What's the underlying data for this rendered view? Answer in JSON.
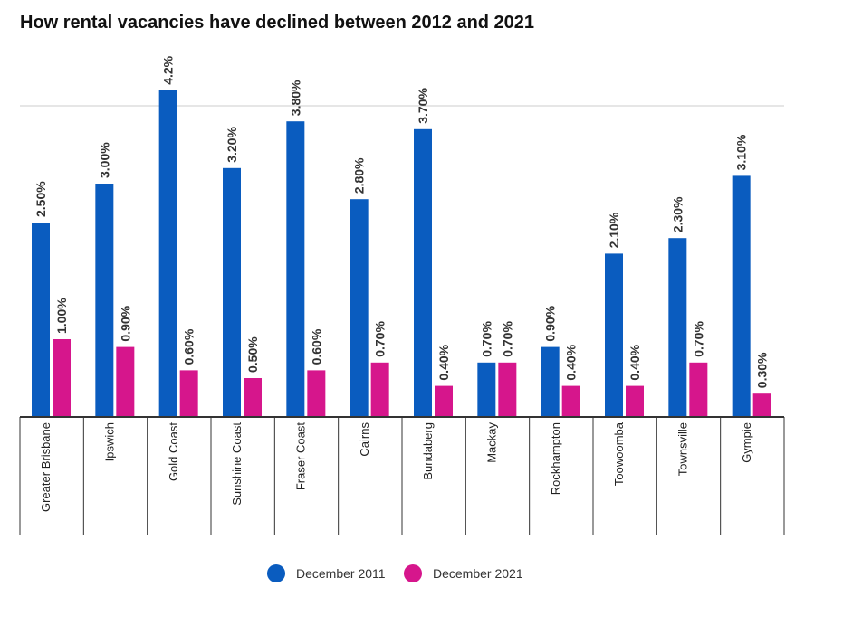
{
  "chart_data": {
    "type": "bar",
    "title": "How rental vacancies have declined between 2012 and 2021",
    "categories": [
      "Greater Brisbane",
      "Ipswich",
      "Gold Coast",
      "Sunshine Coast",
      "Fraser Coast",
      "Cairns",
      "Bundaberg",
      "Mackay",
      "Rockhampton",
      "Toowoomba",
      "Townsville",
      "Gympie"
    ],
    "series": [
      {
        "name": "December 2011",
        "color": "#0a5cbf",
        "values": [
          2.5,
          3.0,
          4.2,
          3.2,
          3.8,
          2.8,
          3.7,
          0.7,
          0.9,
          2.1,
          2.3,
          3.1
        ],
        "value_labels": [
          "2.50%",
          "3.00%",
          "4.2%",
          "3.20%",
          "3.80%",
          "2.80%",
          "3.70%",
          "0.70%",
          "0.90%",
          "2.10%",
          "2.30%",
          "3.10%"
        ]
      },
      {
        "name": "December 2021",
        "color": "#d6168c",
        "values": [
          1.0,
          0.9,
          0.6,
          0.5,
          0.6,
          0.7,
          0.4,
          0.7,
          0.4,
          0.4,
          0.7,
          0.3
        ],
        "value_labels": [
          "1.00%",
          "0.90%",
          "0.60%",
          "0.50%",
          "0.60%",
          "0.70%",
          "0.40%",
          "0.70%",
          "0.40%",
          "0.40%",
          "0.70%",
          "0.30%"
        ]
      }
    ],
    "ylim": [
      0,
      4
    ],
    "yticks": [
      0,
      4
    ],
    "grid": true,
    "legend": "bottom"
  }
}
